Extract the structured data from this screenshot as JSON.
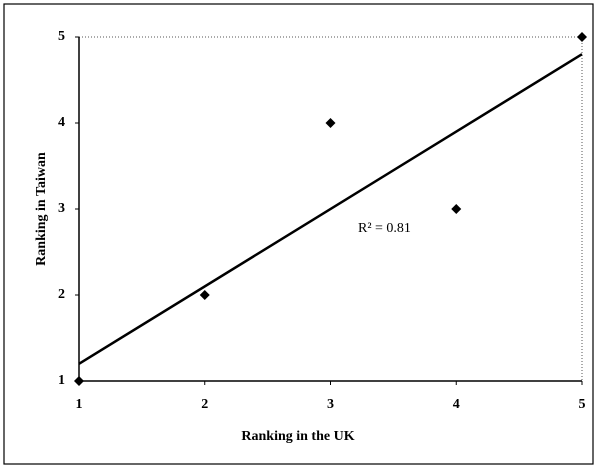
{
  "chart_data": {
    "type": "scatter",
    "x_label": "Ranking in the UK",
    "y_label": "Ranking in Taiwan",
    "x": [
      1,
      2,
      3,
      4,
      5
    ],
    "values": [
      1,
      2,
      4,
      3,
      5
    ],
    "color": "#000000",
    "trendline": {
      "x": [
        1,
        5
      ],
      "y": [
        1.2,
        4.8
      ]
    },
    "annotation": "R² = 0.81",
    "xlim": [
      1,
      5
    ],
    "xticks": [
      1,
      2,
      3,
      4,
      5
    ],
    "ylim": [
      1,
      5
    ],
    "yticks": [
      1,
      2,
      3,
      4,
      5
    ]
  }
}
